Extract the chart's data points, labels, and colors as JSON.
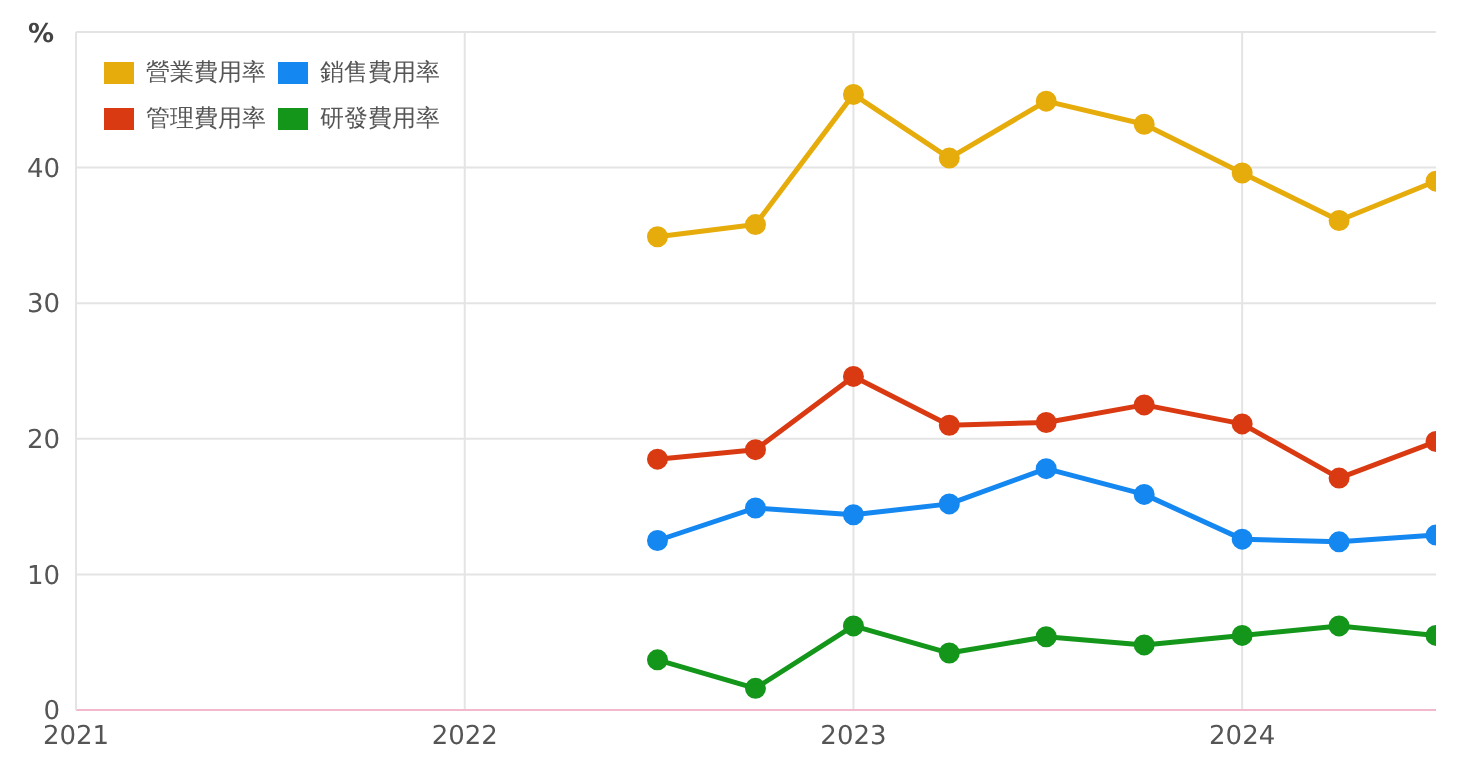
{
  "chart_data": {
    "type": "line",
    "ylabel": "%",
    "x": [
      "2022-07",
      "2022-10",
      "2023-01",
      "2023-04",
      "2023-07",
      "2023-10",
      "2024-01",
      "2024-04",
      "2024-07"
    ],
    "series": [
      {
        "name": "營業費用率",
        "color": "#e6ac0c",
        "values": [
          34.9,
          35.8,
          45.4,
          40.7,
          44.9,
          43.2,
          39.6,
          36.1,
          39.0
        ]
      },
      {
        "name": "銷售費用率",
        "color": "#1487f0",
        "values": [
          12.5,
          14.9,
          14.4,
          15.2,
          17.8,
          15.9,
          12.6,
          12.4,
          12.9
        ]
      },
      {
        "name": "管理費用率",
        "color": "#d93a12",
        "values": [
          18.5,
          19.2,
          24.6,
          21.0,
          21.2,
          22.5,
          21.1,
          17.1,
          19.8
        ]
      },
      {
        "name": "研發費用率",
        "color": "#13961a",
        "values": [
          3.7,
          1.6,
          6.2,
          4.2,
          5.4,
          4.8,
          5.5,
          6.2,
          5.5
        ]
      }
    ],
    "xlim": [
      "2021",
      "2024-07"
    ],
    "xticks": [
      "2021",
      "2022",
      "2023",
      "2024"
    ],
    "ylim": [
      0,
      50
    ],
    "yticks": [
      0,
      10,
      20,
      30,
      40,
      {
        "value": 50,
        "label": null
      }
    ],
    "grid": true,
    "legend": "top left",
    "marker": "circle",
    "line_style": "solid"
  }
}
